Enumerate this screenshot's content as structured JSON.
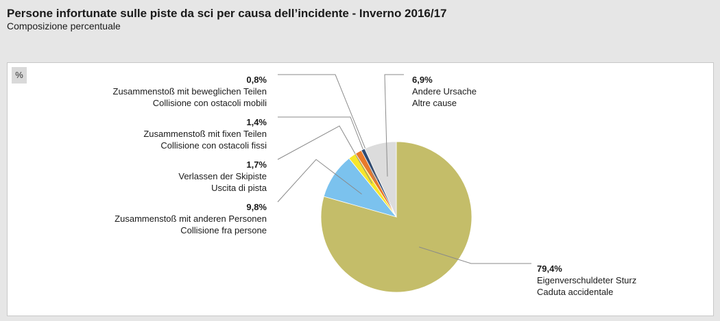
{
  "title": "Persone infortunate sulle piste da sci per causa dell’incidente - Inverno 2016/17",
  "subtitle": "Composizione percentuale",
  "unit_label": "%",
  "chart_data": {
    "type": "pie",
    "title": "Persone infortunate sulle piste da sci per causa dell’incidente - Inverno 2016/17",
    "subtitle": "Composizione percentuale",
    "unit": "%",
    "slices": [
      {
        "value": 79.4,
        "value_label": "79,4%",
        "label_de": "Eigenverschuldeter Sturz",
        "label_it": "Caduta accidentale",
        "color": "#c4bd69"
      },
      {
        "value": 9.8,
        "value_label": "9,8%",
        "label_de": "Zusammenstoß mit anderen Personen",
        "label_it": "Collisione fra persone",
        "color": "#7bc2ee"
      },
      {
        "value": 1.7,
        "value_label": "1,7%",
        "label_de": "Verlassen der Skipiste",
        "label_it": "Uscita di pista",
        "color": "#f6e62a"
      },
      {
        "value": 1.4,
        "value_label": "1,4%",
        "label_de": "Zusammenstoß mit fixen Teilen",
        "label_it": "Collisione con ostacoli fissi",
        "color": "#e87a2b"
      },
      {
        "value": 0.8,
        "value_label": "0,8%",
        "label_de": "Zusammenstoß mit beweglichen Teilen",
        "label_it": "Collisione con ostacoli mobili",
        "color": "#2e4a72"
      },
      {
        "value": 6.9,
        "value_label": "6,9%",
        "label_de": "Andere Ursache",
        "label_it": "Altre cause",
        "color": "#dcdcdc"
      }
    ]
  }
}
